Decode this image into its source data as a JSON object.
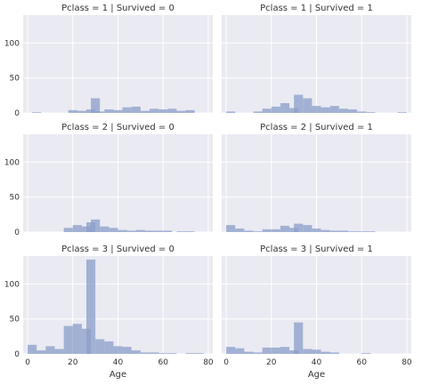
{
  "chart_data": [
    {
      "type": "bar",
      "title": "Pclass = 1 | Survived = 0",
      "xlabel": "",
      "ylabel": "",
      "x_ticks": [
        0,
        20,
        40,
        60,
        80
      ],
      "y_ticks": [
        0,
        50,
        100
      ],
      "xlim": [
        -2,
        82
      ],
      "ylim": [
        0,
        140
      ],
      "bin_width": 4,
      "bins": [
        {
          "x0": 2,
          "count": 1
        },
        {
          "x0": 18,
          "count": 4
        },
        {
          "x0": 22,
          "count": 3
        },
        {
          "x0": 26,
          "count": 5
        },
        {
          "x0": 28,
          "count": 21
        },
        {
          "x0": 30,
          "count": 2
        },
        {
          "x0": 34,
          "count": 5
        },
        {
          "x0": 38,
          "count": 4
        },
        {
          "x0": 42,
          "count": 8
        },
        {
          "x0": 46,
          "count": 9
        },
        {
          "x0": 50,
          "count": 3
        },
        {
          "x0": 54,
          "count": 6
        },
        {
          "x0": 58,
          "count": 5
        },
        {
          "x0": 62,
          "count": 6
        },
        {
          "x0": 66,
          "count": 3
        },
        {
          "x0": 70,
          "count": 4
        }
      ]
    },
    {
      "type": "bar",
      "title": "Pclass = 1 | Survived = 1",
      "xlabel": "",
      "ylabel": "",
      "x_ticks": [
        0,
        20,
        40,
        60,
        80
      ],
      "y_ticks": [
        0,
        50,
        100
      ],
      "xlim": [
        -2,
        82
      ],
      "ylim": [
        0,
        140
      ],
      "bin_width": 4,
      "bins": [
        {
          "x0": 0,
          "count": 2
        },
        {
          "x0": 12,
          "count": 2
        },
        {
          "x0": 16,
          "count": 6
        },
        {
          "x0": 20,
          "count": 9
        },
        {
          "x0": 24,
          "count": 14
        },
        {
          "x0": 28,
          "count": 7
        },
        {
          "x0": 30,
          "count": 26
        },
        {
          "x0": 34,
          "count": 21
        },
        {
          "x0": 38,
          "count": 10
        },
        {
          "x0": 42,
          "count": 8
        },
        {
          "x0": 46,
          "count": 10
        },
        {
          "x0": 50,
          "count": 6
        },
        {
          "x0": 54,
          "count": 5
        },
        {
          "x0": 58,
          "count": 2
        },
        {
          "x0": 62,
          "count": 1
        },
        {
          "x0": 76,
          "count": 1
        }
      ]
    },
    {
      "type": "bar",
      "title": "Pclass = 2 | Survived = 0",
      "xlabel": "",
      "ylabel": "",
      "x_ticks": [
        0,
        20,
        40,
        60,
        80
      ],
      "y_ticks": [
        0,
        50,
        100
      ],
      "xlim": [
        -2,
        82
      ],
      "ylim": [
        0,
        140
      ],
      "bin_width": 4,
      "bins": [
        {
          "x0": 16,
          "count": 6
        },
        {
          "x0": 20,
          "count": 10
        },
        {
          "x0": 24,
          "count": 8
        },
        {
          "x0": 26,
          "count": 14
        },
        {
          "x0": 28,
          "count": 18
        },
        {
          "x0": 32,
          "count": 8
        },
        {
          "x0": 36,
          "count": 6
        },
        {
          "x0": 40,
          "count": 3
        },
        {
          "x0": 44,
          "count": 2
        },
        {
          "x0": 48,
          "count": 3
        },
        {
          "x0": 52,
          "count": 2
        },
        {
          "x0": 56,
          "count": 2
        },
        {
          "x0": 60,
          "count": 2
        },
        {
          "x0": 66,
          "count": 1
        },
        {
          "x0": 70,
          "count": 1
        }
      ]
    },
    {
      "type": "bar",
      "title": "Pclass = 2 | Survived = 1",
      "xlabel": "",
      "ylabel": "",
      "x_ticks": [
        0,
        20,
        40,
        60,
        80
      ],
      "y_ticks": [
        0,
        50,
        100
      ],
      "xlim": [
        -2,
        82
      ],
      "ylim": [
        0,
        140
      ],
      "bin_width": 4,
      "bins": [
        {
          "x0": 0,
          "count": 10
        },
        {
          "x0": 4,
          "count": 5
        },
        {
          "x0": 8,
          "count": 2
        },
        {
          "x0": 12,
          "count": 1
        },
        {
          "x0": 16,
          "count": 4
        },
        {
          "x0": 20,
          "count": 4
        },
        {
          "x0": 24,
          "count": 9
        },
        {
          "x0": 28,
          "count": 6
        },
        {
          "x0": 30,
          "count": 12
        },
        {
          "x0": 34,
          "count": 10
        },
        {
          "x0": 38,
          "count": 5
        },
        {
          "x0": 42,
          "count": 3
        },
        {
          "x0": 46,
          "count": 2
        },
        {
          "x0": 50,
          "count": 2
        },
        {
          "x0": 54,
          "count": 1
        },
        {
          "x0": 58,
          "count": 1
        },
        {
          "x0": 62,
          "count": 1
        }
      ]
    },
    {
      "type": "bar",
      "title": "Pclass = 3 | Survived = 0",
      "xlabel": "Age",
      "ylabel": "",
      "x_ticks": [
        0,
        20,
        40,
        60,
        80
      ],
      "y_ticks": [
        0,
        50,
        100
      ],
      "xlim": [
        -2,
        82
      ],
      "ylim": [
        0,
        140
      ],
      "bin_width": 4,
      "bins": [
        {
          "x0": 0,
          "count": 13
        },
        {
          "x0": 4,
          "count": 5
        },
        {
          "x0": 8,
          "count": 11
        },
        {
          "x0": 12,
          "count": 7
        },
        {
          "x0": 16,
          "count": 40
        },
        {
          "x0": 20,
          "count": 43
        },
        {
          "x0": 24,
          "count": 36
        },
        {
          "x0": 26,
          "count": 135
        },
        {
          "x0": 30,
          "count": 21
        },
        {
          "x0": 34,
          "count": 18
        },
        {
          "x0": 38,
          "count": 11
        },
        {
          "x0": 42,
          "count": 10
        },
        {
          "x0": 46,
          "count": 5
        },
        {
          "x0": 50,
          "count": 2
        },
        {
          "x0": 54,
          "count": 2
        },
        {
          "x0": 58,
          "count": 1
        },
        {
          "x0": 62,
          "count": 1
        },
        {
          "x0": 70,
          "count": 1
        },
        {
          "x0": 74,
          "count": 1
        }
      ]
    },
    {
      "type": "bar",
      "title": "Pclass = 3 | Survived = 1",
      "xlabel": "Age",
      "ylabel": "",
      "x_ticks": [
        0,
        20,
        40,
        60,
        80
      ],
      "y_ticks": [
        0,
        50,
        100
      ],
      "xlim": [
        -2,
        82
      ],
      "ylim": [
        0,
        140
      ],
      "bin_width": 4,
      "bins": [
        {
          "x0": 0,
          "count": 10
        },
        {
          "x0": 4,
          "count": 8
        },
        {
          "x0": 8,
          "count": 3
        },
        {
          "x0": 12,
          "count": 2
        },
        {
          "x0": 16,
          "count": 9
        },
        {
          "x0": 20,
          "count": 9
        },
        {
          "x0": 24,
          "count": 10
        },
        {
          "x0": 28,
          "count": 5
        },
        {
          "x0": 30,
          "count": 45
        },
        {
          "x0": 34,
          "count": 7
        },
        {
          "x0": 38,
          "count": 6
        },
        {
          "x0": 42,
          "count": 3
        },
        {
          "x0": 46,
          "count": 2
        },
        {
          "x0": 60,
          "count": 1
        }
      ]
    }
  ]
}
